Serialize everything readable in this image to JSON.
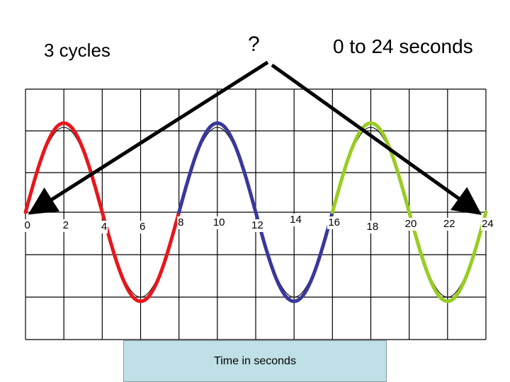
{
  "title_left": "3 cycles",
  "title_center": "?",
  "title_right": "0 to 24 seconds",
  "xlabel": "Time  in seconds",
  "ticks": [
    "0",
    "2",
    "4",
    "6",
    "8",
    "10",
    "12",
    "14",
    "16",
    "18",
    "20",
    "22",
    "24"
  ],
  "colors": {
    "cycle1": "#e8161b",
    "cycle2": "#38389c",
    "cycle3": "#99cc22",
    "arrow": "#000000",
    "grid": "#000000",
    "label_box": "#bfe0e6"
  },
  "chart_data": {
    "type": "line",
    "x_range": [
      0,
      24
    ],
    "period": 8,
    "cycles": 3,
    "series": [
      {
        "x_start": 0,
        "x_end": 8,
        "color": "#e8161b"
      },
      {
        "x_start": 8,
        "x_end": 16,
        "color": "#38389c"
      },
      {
        "x_start": 16,
        "x_end": 24,
        "color": "#99cc22"
      }
    ],
    "grid": true
  }
}
